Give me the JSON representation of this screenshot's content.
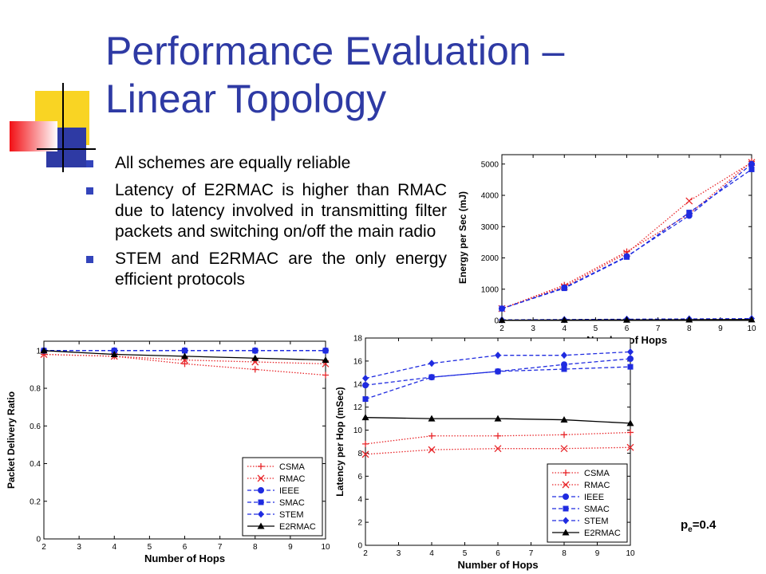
{
  "slide": {
    "title_line1": "Performance Evaluation –",
    "title_line2": "Linear Topology",
    "bullets": [
      "All schemes are equally reliable",
      "Latency of E2RMAC is higher than RMAC due to latency involved in transmitting filter packets and switching on/off the main radio",
      "STEM and E2RMAC are the only energy efficient protocols"
    ],
    "pe_label": {
      "symbol": "p",
      "subscript": "e",
      "value": "=0.4"
    }
  },
  "colors": {
    "title": "#2E3AA4",
    "bullet": "#3344BB",
    "red": "#E8262A",
    "blue": "#1F2BE0",
    "black": "#000000"
  },
  "chart_data": [
    {
      "id": "energy",
      "type": "line",
      "xlabel": "Number of Hops",
      "ylabel": "Energy per Sec (mJ)",
      "xlim": [
        2,
        10
      ],
      "ylim": [
        0,
        5300
      ],
      "xticks": [
        2,
        3,
        4,
        5,
        6,
        7,
        8,
        9,
        10
      ],
      "yticks": [
        0,
        1000,
        2000,
        3000,
        4000,
        5000
      ],
      "x": [
        2,
        4,
        6,
        8,
        10
      ],
      "legend": false,
      "series": [
        {
          "name": "CSMA",
          "values": [
            380,
            1130,
            2200,
            3400,
            5080
          ],
          "color": "#E8262A",
          "dash": "dotted",
          "marker": "plus"
        },
        {
          "name": "RMAC",
          "values": [
            380,
            1080,
            2150,
            3820,
            5050
          ],
          "color": "#E8262A",
          "dash": "dotted",
          "marker": "x"
        },
        {
          "name": "IEEE",
          "values": [
            380,
            1050,
            2050,
            3350,
            5000
          ],
          "color": "#1F2BE0",
          "dash": "dashed",
          "marker": "circle"
        },
        {
          "name": "SMAC",
          "values": [
            380,
            1030,
            2030,
            3450,
            4830
          ],
          "color": "#1F2BE0",
          "dash": "dashed",
          "marker": "square"
        },
        {
          "name": "STEM",
          "values": [
            20,
            30,
            40,
            50,
            60
          ],
          "color": "#1F2BE0",
          "dash": "dashed",
          "marker": "diamond"
        },
        {
          "name": "E2RMAC",
          "values": [
            10,
            15,
            20,
            25,
            30
          ],
          "color": "#000000",
          "dash": "solid",
          "marker": "triangle"
        }
      ]
    },
    {
      "id": "pdr",
      "type": "line",
      "xlabel": "Number of Hops",
      "ylabel": "Packet Delivery Ratio",
      "xlim": [
        2,
        10
      ],
      "ylim": [
        0,
        1.05
      ],
      "xticks": [
        2,
        3,
        4,
        5,
        6,
        7,
        8,
        9,
        10
      ],
      "yticks": [
        0,
        0.2,
        0.4,
        0.6,
        0.8,
        1
      ],
      "x": [
        2,
        4,
        6,
        8,
        10
      ],
      "legend": true,
      "legend_position": "bottom-right",
      "series": [
        {
          "name": "CSMA",
          "values": [
            0.98,
            0.97,
            0.93,
            0.9,
            0.87
          ],
          "color": "#E8262A",
          "dash": "dotted",
          "marker": "plus"
        },
        {
          "name": "RMAC",
          "values": [
            0.98,
            0.97,
            0.95,
            0.94,
            0.93
          ],
          "color": "#E8262A",
          "dash": "dotted",
          "marker": "x"
        },
        {
          "name": "IEEE",
          "values": [
            1.0,
            1.0,
            1.0,
            1.0,
            1.0
          ],
          "color": "#1F2BE0",
          "dash": "dashed",
          "marker": "circle"
        },
        {
          "name": "SMAC",
          "values": [
            1.0,
            1.0,
            1.0,
            1.0,
            1.0
          ],
          "color": "#1F2BE0",
          "dash": "dashed",
          "marker": "square"
        },
        {
          "name": "STEM",
          "values": [
            1.0,
            1.0,
            1.0,
            1.0,
            1.0
          ],
          "color": "#1F2BE0",
          "dash": "dashed",
          "marker": "diamond"
        },
        {
          "name": "E2RMAC",
          "values": [
            1.0,
            0.98,
            0.97,
            0.96,
            0.95
          ],
          "color": "#000000",
          "dash": "solid",
          "marker": "triangle"
        }
      ]
    },
    {
      "id": "latency",
      "type": "line",
      "xlabel": "Number of Hops",
      "ylabel": "Latency per Hop (mSec)",
      "xlim": [
        2,
        10
      ],
      "ylim": [
        0,
        18
      ],
      "xticks": [
        2,
        3,
        4,
        5,
        6,
        7,
        8,
        9,
        10
      ],
      "yticks": [
        0,
        2,
        4,
        6,
        8,
        10,
        12,
        14,
        16,
        18
      ],
      "x": [
        2,
        4,
        6,
        8,
        10
      ],
      "legend": true,
      "legend_position": "bottom-right",
      "series": [
        {
          "name": "CSMA",
          "values": [
            8.8,
            9.5,
            9.5,
            9.6,
            9.8
          ],
          "color": "#E8262A",
          "dash": "dotted",
          "marker": "plus"
        },
        {
          "name": "RMAC",
          "values": [
            7.9,
            8.3,
            8.4,
            8.4,
            8.5
          ],
          "color": "#E8262A",
          "dash": "dotted",
          "marker": "x"
        },
        {
          "name": "IEEE",
          "values": [
            13.9,
            14.6,
            15.1,
            15.7,
            16.2
          ],
          "color": "#1F2BE0",
          "dash": "dashed",
          "marker": "circle"
        },
        {
          "name": "SMAC",
          "values": [
            12.7,
            14.6,
            15.1,
            15.3,
            15.5
          ],
          "color": "#1F2BE0",
          "dash": "dashed",
          "marker": "square"
        },
        {
          "name": "STEM",
          "values": [
            14.5,
            15.8,
            16.5,
            16.5,
            16.8
          ],
          "color": "#1F2BE0",
          "dash": "dashed",
          "marker": "diamond"
        },
        {
          "name": "E2RMAC",
          "values": [
            11.1,
            11.0,
            11.0,
            10.9,
            10.6
          ],
          "color": "#000000",
          "dash": "solid",
          "marker": "triangle"
        }
      ]
    }
  ]
}
